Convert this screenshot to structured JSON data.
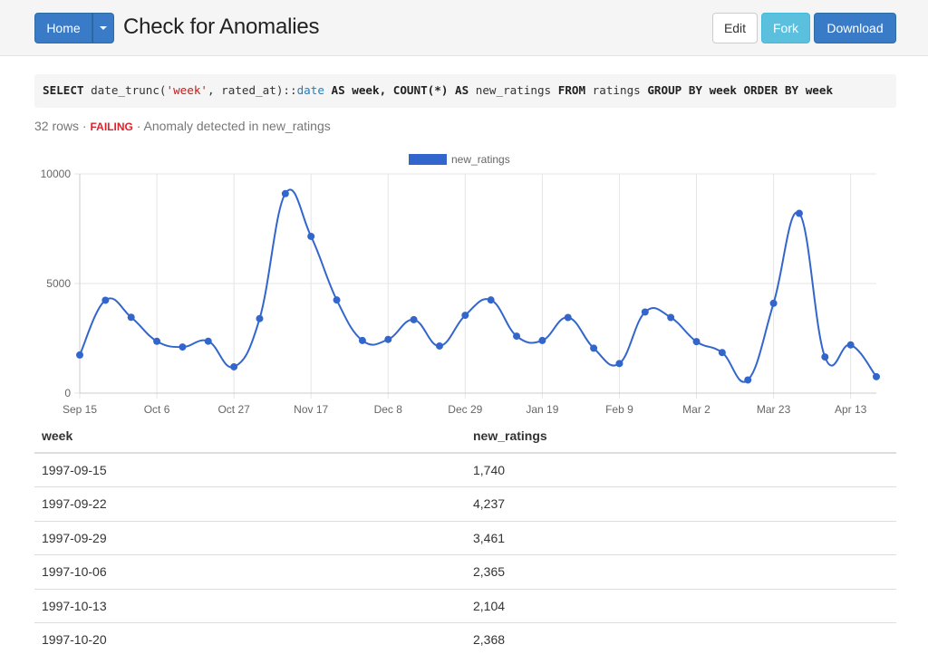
{
  "toolbar": {
    "home_label": "Home",
    "title": "Check for Anomalies",
    "edit_label": "Edit",
    "fork_label": "Fork",
    "download_label": "Download"
  },
  "query": {
    "select": "SELECT",
    "fn": " date_trunc(",
    "str": "'week'",
    "mid": ", rated_at)::",
    "type": "date",
    "as1": " AS week, COUNT(*) ",
    "as2": "AS",
    "tail1": " new_ratings ",
    "from": "FROM",
    "tail2": " ratings ",
    "group": "GROUP BY week ORDER BY week"
  },
  "status": {
    "rows": "32 rows",
    "sep1": " · ",
    "state": "FAILING",
    "sep2": " · ",
    "message": "Anomaly detected in new_ratings"
  },
  "colors": {
    "primary": "#3a7bc8",
    "info": "#5bc0de",
    "failing": "#e0202a",
    "series": "#3366cc"
  },
  "chart_data": {
    "type": "line",
    "legend": "new_ratings",
    "legend_position": "top",
    "ylim": [
      0,
      10000
    ],
    "y_ticks": [
      "0",
      "5000",
      "10000"
    ],
    "x_ticks": [
      "Sep 15",
      "Oct 6",
      "Oct 27",
      "Nov 17",
      "Dec 8",
      "Dec 29",
      "Jan 19",
      "Feb 9",
      "Mar 2",
      "Mar 23",
      "Apr 13"
    ],
    "x_tick_index": [
      0,
      3,
      6,
      9,
      12,
      15,
      18,
      21,
      24,
      27,
      30
    ],
    "grid": true,
    "series": [
      {
        "name": "new_ratings",
        "values": [
          1740,
          4237,
          3461,
          2365,
          2104,
          2368,
          1200,
          3400,
          9100,
          7150,
          4250,
          2400,
          2450,
          3350,
          2150,
          3550,
          4250,
          2600,
          2400,
          3450,
          2050,
          1350,
          3700,
          3450,
          2350,
          1850,
          600,
          4100,
          8200,
          1650,
          2200,
          750
        ]
      }
    ]
  },
  "table": {
    "headers": [
      "week",
      "new_ratings"
    ],
    "rows": [
      [
        "1997-09-15",
        "1,740"
      ],
      [
        "1997-09-22",
        "4,237"
      ],
      [
        "1997-09-29",
        "3,461"
      ],
      [
        "1997-10-06",
        "2,365"
      ],
      [
        "1997-10-13",
        "2,104"
      ],
      [
        "1997-10-20",
        "2,368"
      ]
    ]
  }
}
